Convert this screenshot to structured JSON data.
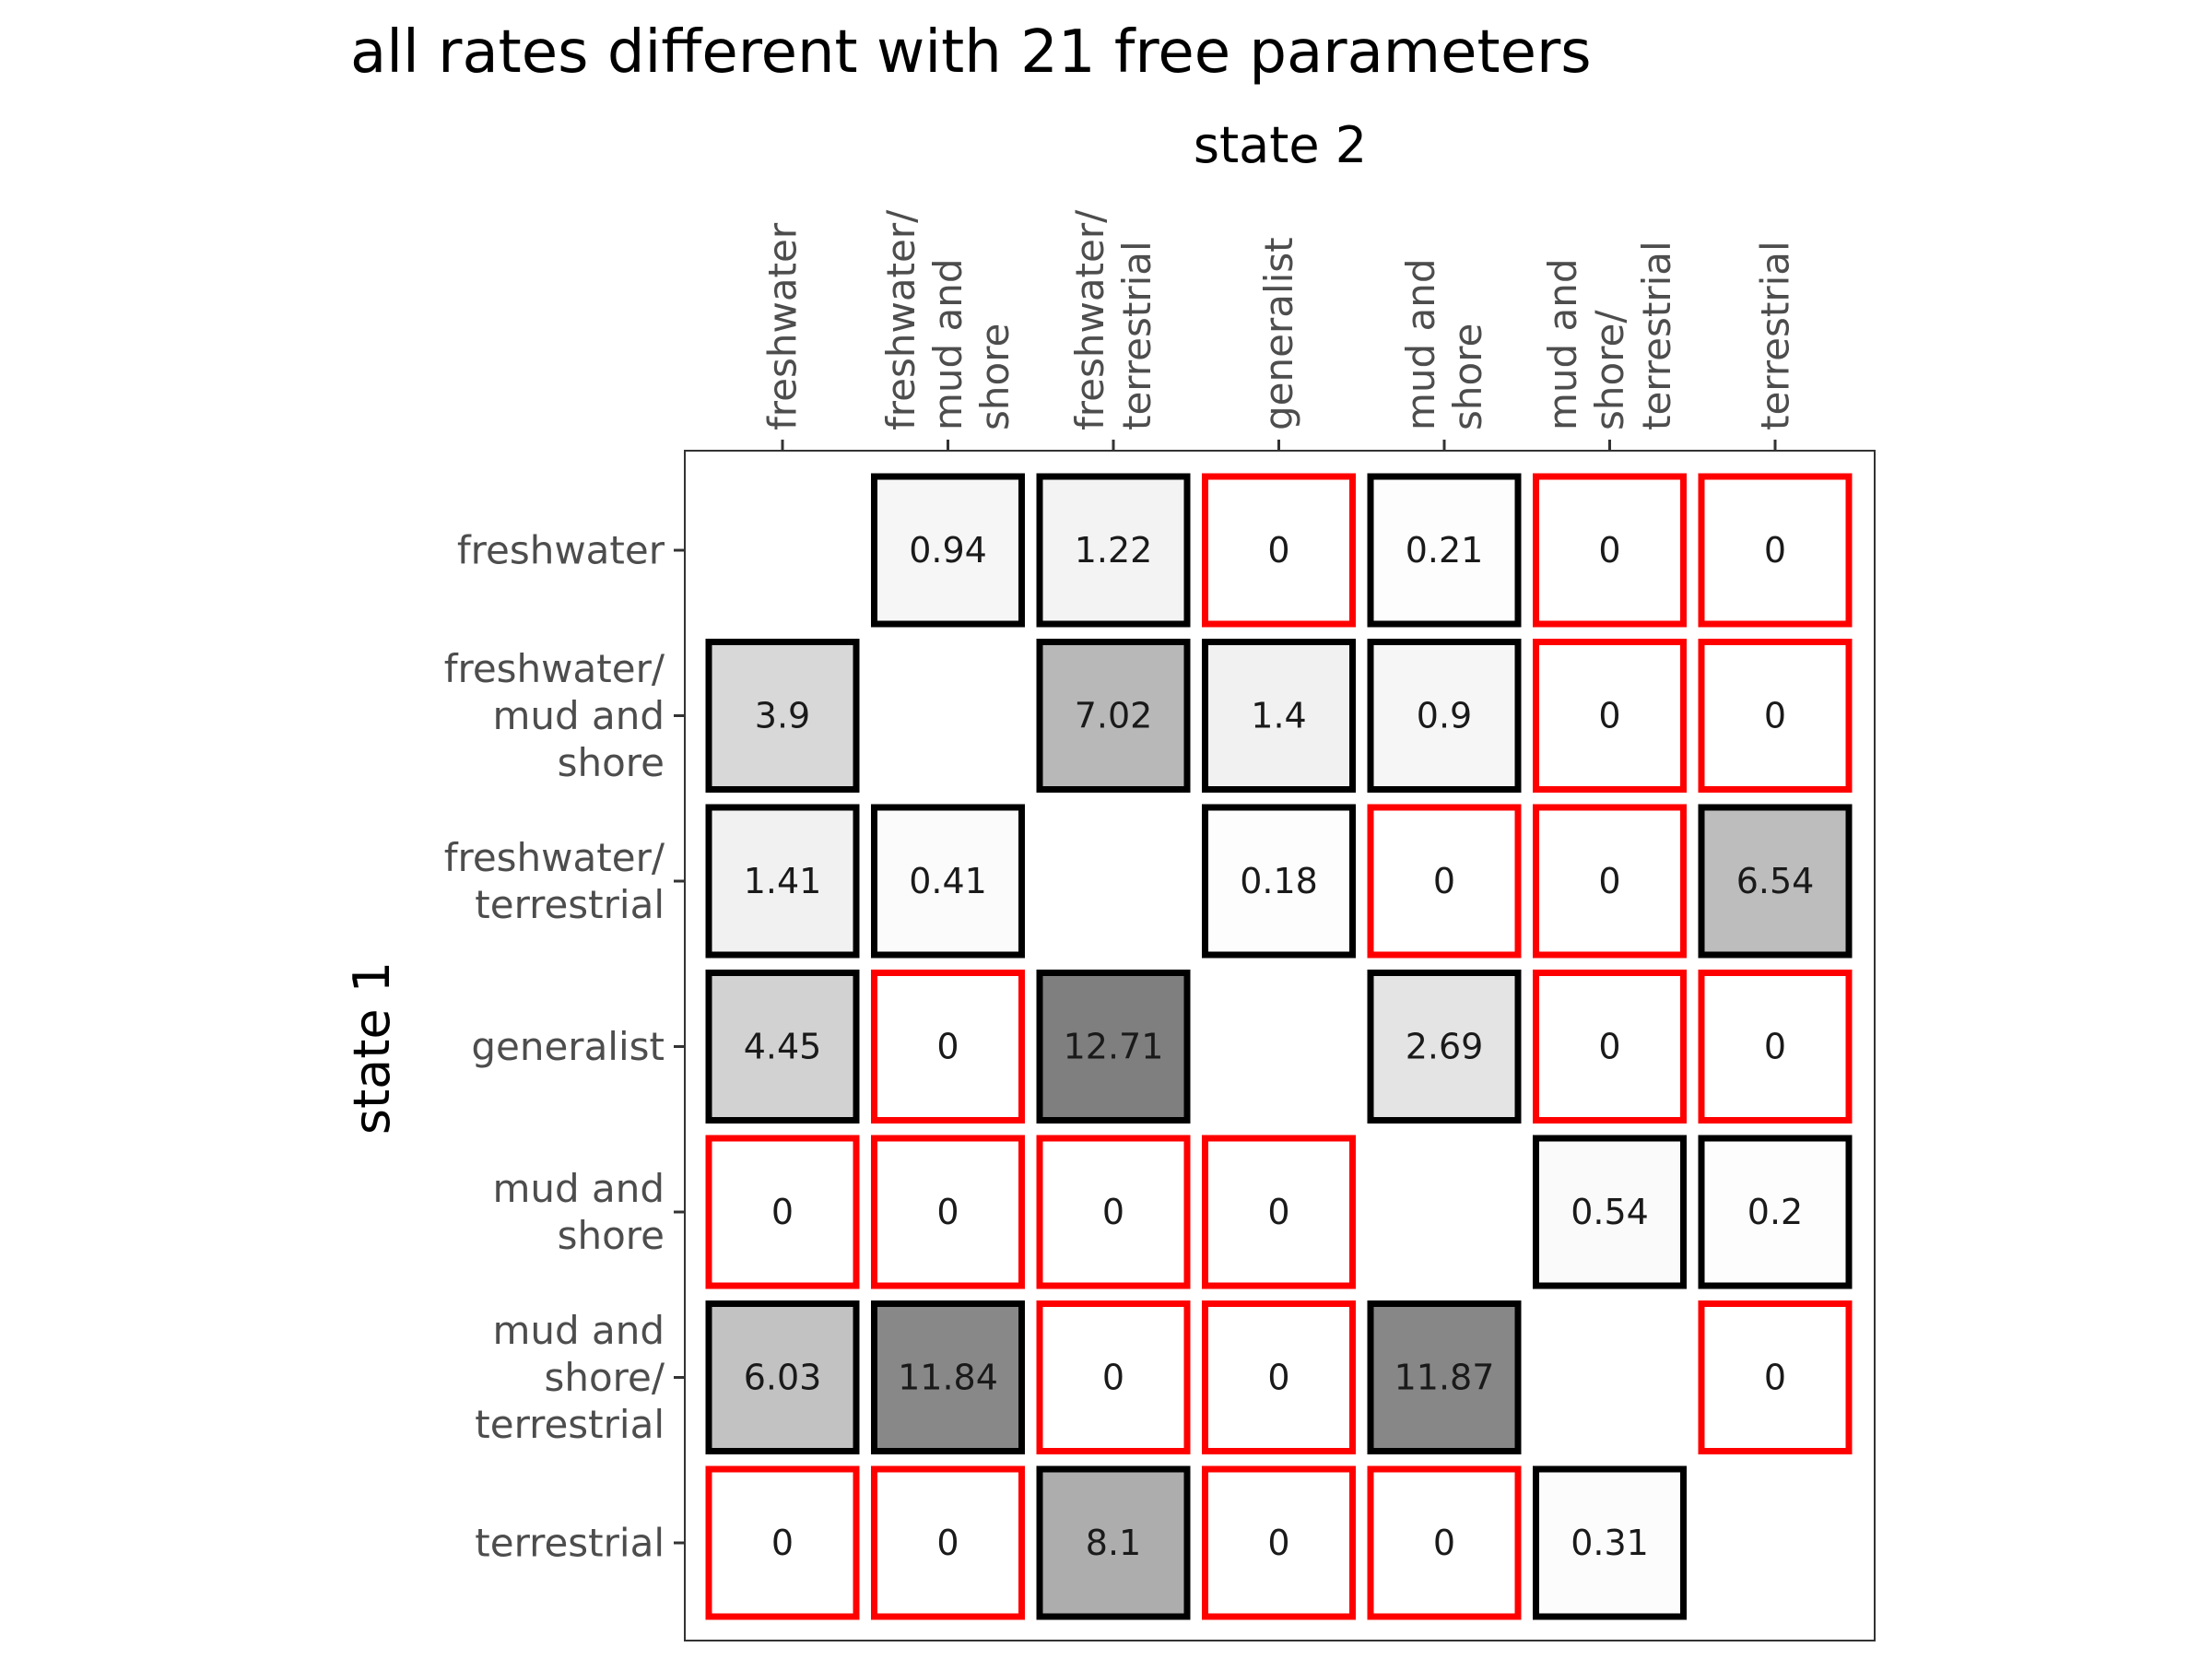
{
  "chart_data": {
    "type": "heatmap",
    "title": "all rates different with 21 free parameters",
    "xlabel": "state 2",
    "ylabel": "state 1",
    "x_axis_position": "top",
    "categories": [
      "freshwater",
      "freshwater/\nmud and\nshore",
      "freshwater/\nterrestrial",
      "generalist",
      "mud and\nshore",
      "mud and\nshore/\nterrestrial",
      "terrestrial"
    ],
    "values": [
      [
        null,
        0.94,
        1.22,
        0,
        0.21,
        0,
        0
      ],
      [
        3.9,
        null,
        7.02,
        1.4,
        0.9,
        0,
        0
      ],
      [
        1.41,
        0.41,
        null,
        0.18,
        0,
        0,
        6.54
      ],
      [
        4.45,
        0,
        12.71,
        null,
        2.69,
        0,
        0
      ],
      [
        0,
        0,
        0,
        0,
        null,
        0.54,
        0.2
      ],
      [
        6.03,
        11.84,
        0,
        0,
        11.87,
        null,
        0
      ],
      [
        0,
        0,
        8.1,
        0,
        0,
        0.31,
        null
      ]
    ],
    "value_labels": [
      [
        "",
        "0.94",
        "1.22",
        "0",
        "0.21",
        "0",
        "0"
      ],
      [
        "3.9",
        "",
        "7.02",
        "1.4",
        "0.9",
        "0",
        "0"
      ],
      [
        "1.41",
        "0.41",
        "",
        "0.18",
        "0",
        "0",
        "6.54"
      ],
      [
        "4.45",
        "0",
        "12.71",
        "",
        "2.69",
        "0",
        "0"
      ],
      [
        "0",
        "0",
        "0",
        "0",
        "",
        "0.54",
        "0.2"
      ],
      [
        "6.03",
        "11.84",
        "0",
        "0",
        "11.87",
        "",
        "0"
      ],
      [
        "0",
        "0",
        "8.1",
        "0",
        "0",
        "0.31",
        ""
      ]
    ],
    "color_scale": {
      "low": "#ffffff",
      "high": "#7f7f7f",
      "domain": [
        0,
        12.71
      ]
    },
    "border_colors": {
      "nonzero": "#000000",
      "zero": "#ff0000"
    },
    "grid": false,
    "legend": "none"
  }
}
